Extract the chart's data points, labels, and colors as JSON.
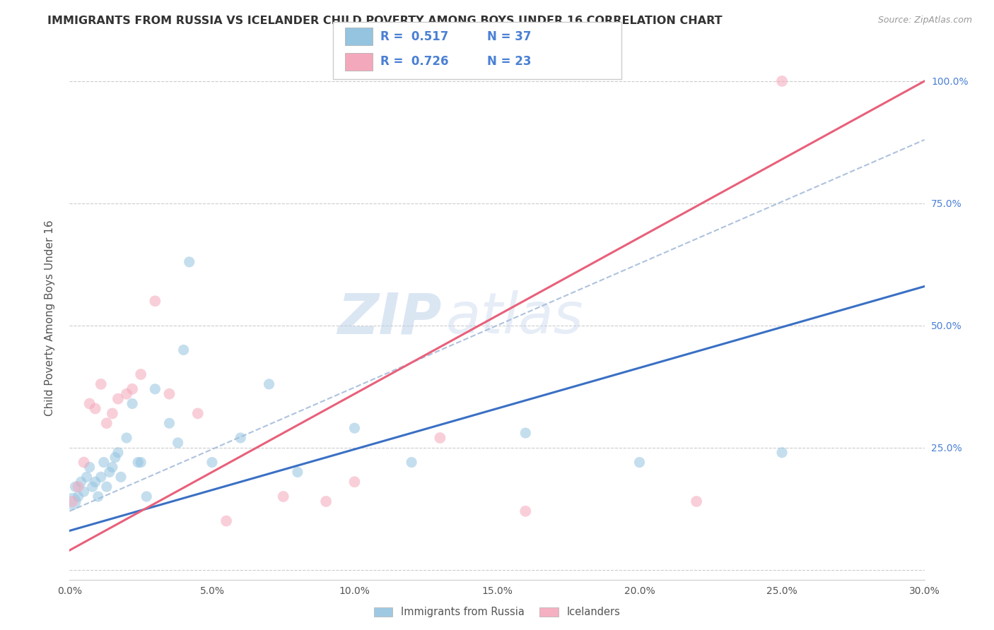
{
  "title": "IMMIGRANTS FROM RUSSIA VS ICELANDER CHILD POVERTY AMONG BOYS UNDER 16 CORRELATION CHART",
  "source": "Source: ZipAtlas.com",
  "ylabel": "Child Poverty Among Boys Under 16",
  "xlim": [
    0.0,
    0.3
  ],
  "ylim": [
    -0.02,
    1.05
  ],
  "xticks": [
    0.0,
    0.05,
    0.1,
    0.15,
    0.2,
    0.25,
    0.3
  ],
  "xticklabels": [
    "0.0%",
    "5.0%",
    "10.0%",
    "15.0%",
    "20.0%",
    "25.0%",
    "30.0%"
  ],
  "yticks_right": [
    0.25,
    0.5,
    0.75,
    1.0
  ],
  "yticklabels_right": [
    "25.0%",
    "50.0%",
    "75.0%",
    "100.0%"
  ],
  "legend_blue_r": "R =  0.517",
  "legend_blue_n": "N = 37",
  "legend_pink_r": "R =  0.726",
  "legend_pink_n": "N = 23",
  "legend_label1": "Immigrants from Russia",
  "legend_label2": "Icelanders",
  "watermark_zip": "ZIP",
  "watermark_atlas": "atlas",
  "blue_color": "#94c4e0",
  "pink_color": "#f4a8bb",
  "blue_line_color": "#3a70c4",
  "pink_line_color": "#e8607a",
  "dashed_line_color": "#a0b8d8",
  "russia_x": [
    0.001,
    0.002,
    0.003,
    0.004,
    0.005,
    0.006,
    0.007,
    0.008,
    0.009,
    0.01,
    0.011,
    0.012,
    0.013,
    0.014,
    0.015,
    0.016,
    0.017,
    0.018,
    0.02,
    0.022,
    0.024,
    0.025,
    0.027,
    0.03,
    0.035,
    0.038,
    0.04,
    0.042,
    0.05,
    0.06,
    0.07,
    0.08,
    0.1,
    0.12,
    0.16,
    0.2,
    0.25
  ],
  "russia_y": [
    0.14,
    0.17,
    0.15,
    0.18,
    0.16,
    0.19,
    0.21,
    0.17,
    0.18,
    0.15,
    0.19,
    0.22,
    0.17,
    0.2,
    0.21,
    0.23,
    0.24,
    0.19,
    0.27,
    0.34,
    0.22,
    0.22,
    0.15,
    0.37,
    0.3,
    0.26,
    0.45,
    0.63,
    0.22,
    0.27,
    0.38,
    0.2,
    0.29,
    0.22,
    0.28,
    0.22,
    0.24
  ],
  "russia_sizes": [
    300,
    120,
    120,
    120,
    120,
    120,
    120,
    120,
    120,
    120,
    120,
    120,
    120,
    120,
    120,
    120,
    120,
    120,
    120,
    120,
    120,
    120,
    120,
    120,
    120,
    120,
    120,
    120,
    120,
    120,
    120,
    120,
    120,
    120,
    120,
    120,
    120
  ],
  "iceland_x": [
    0.001,
    0.003,
    0.005,
    0.007,
    0.009,
    0.011,
    0.013,
    0.015,
    0.017,
    0.02,
    0.022,
    0.025,
    0.03,
    0.035,
    0.045,
    0.055,
    0.075,
    0.09,
    0.1,
    0.13,
    0.16,
    0.22,
    0.25
  ],
  "iceland_y": [
    0.14,
    0.17,
    0.22,
    0.34,
    0.33,
    0.38,
    0.3,
    0.32,
    0.35,
    0.36,
    0.37,
    0.4,
    0.55,
    0.36,
    0.32,
    0.1,
    0.15,
    0.14,
    0.18,
    0.27,
    0.12,
    0.14,
    1.0
  ],
  "russia_line_x0": 0.0,
  "russia_line_y0": 0.08,
  "russia_line_x1": 0.3,
  "russia_line_y1": 0.58,
  "iceland_line_x0": 0.0,
  "iceland_line_y0": 0.04,
  "iceland_line_x1": 0.3,
  "iceland_line_y1": 1.0,
  "dash_line_x0": 0.0,
  "dash_line_y0": 0.12,
  "dash_line_x1": 0.3,
  "dash_line_y1": 0.88
}
